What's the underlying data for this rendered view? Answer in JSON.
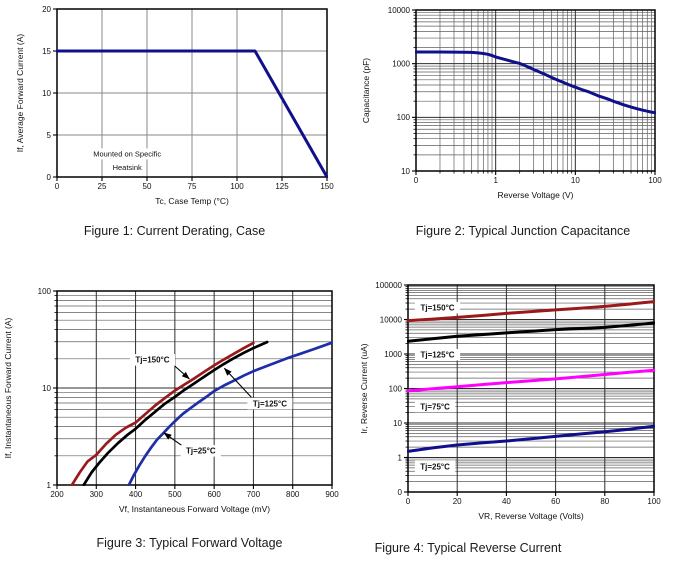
{
  "page_background": "#ffffff",
  "chart_data": [
    {
      "id": "fig1",
      "caption": "Figure 1: Current Derating, Case",
      "type": "line",
      "xscale": "linear",
      "yscale": "linear",
      "xlim": [
        0,
        150
      ],
      "ylim": [
        0,
        20
      ],
      "xlabel": "Tc, Case Temp (°C)",
      "ylabel": "If, Average Forward Current (A)",
      "xticks": [
        0,
        25,
        50,
        75,
        100,
        125,
        150
      ],
      "xtick_labels": [
        "0",
        "25",
        "50",
        "75",
        "100",
        "125",
        "150"
      ],
      "yticks": [
        0,
        5,
        10,
        15,
        20
      ],
      "ytick_labels": [
        "0",
        "5",
        "10",
        "15",
        "20"
      ],
      "grid": {
        "major": "#8a8a8a",
        "minor": "#8a8a8a"
      },
      "series": [
        {
          "name": "If derating",
          "color": "#10108c",
          "width": 3,
          "points": [
            [
              0,
              15
            ],
            [
              110,
              15
            ],
            [
              150,
              0
            ]
          ]
        }
      ],
      "annotations": [
        {
          "type": "text",
          "text": "Mounted on Specific",
          "x": 39,
          "y": 2.75
        },
        {
          "type": "text",
          "text": "Heatsink",
          "x": 39,
          "y": 1.15
        }
      ]
    },
    {
      "id": "fig2",
      "caption": "Figure 2: Typical Junction Capacitance",
      "type": "line",
      "xscale": "log",
      "yscale": "log",
      "xlim": [
        0.1,
        100
      ],
      "ylim": [
        10,
        10000
      ],
      "xlabel": "Reverse Voltage (V)",
      "ylabel": "Capacitance (pF)",
      "xticks": [
        0.1,
        1,
        10,
        100
      ],
      "xtick_labels": [
        "0",
        "1",
        "10",
        "100"
      ],
      "yticks": [
        10,
        100,
        1000,
        10000
      ],
      "ytick_labels": [
        "10",
        "100",
        "1000",
        "10000"
      ],
      "grid": {
        "major": "#2e2e2e",
        "minor": "#5f5f5f"
      },
      "series": [
        {
          "name": "Cj",
          "color": "#10108c",
          "width": 3,
          "points": [
            [
              0.1,
              1650
            ],
            [
              0.2,
              1648
            ],
            [
              0.3,
              1645
            ],
            [
              0.4,
              1635
            ],
            [
              0.5,
              1620
            ],
            [
              0.6,
              1590
            ],
            [
              0.7,
              1545
            ],
            [
              0.8,
              1495
            ],
            [
              0.9,
              1420
            ],
            [
              1,
              1330
            ],
            [
              1.2,
              1240
            ],
            [
              1.5,
              1130
            ],
            [
              2,
              1010
            ],
            [
              2.5,
              880
            ],
            [
              3,
              780
            ],
            [
              4,
              650
            ],
            [
              5,
              555
            ],
            [
              6,
              495
            ],
            [
              7,
              450
            ],
            [
              8,
              415
            ],
            [
              10,
              365
            ],
            [
              12,
              330
            ],
            [
              15,
              295
            ],
            [
              20,
              248
            ],
            [
              25,
              222
            ],
            [
              30,
              200
            ],
            [
              40,
              172
            ],
            [
              50,
              155
            ],
            [
              60,
              144
            ],
            [
              70,
              136
            ],
            [
              80,
              130
            ],
            [
              90,
              125
            ],
            [
              100,
              122
            ]
          ]
        }
      ],
      "annotations": []
    },
    {
      "id": "fig3",
      "caption": "Figure 3: Typical Forward Voltage",
      "type": "line",
      "xscale": "linear",
      "yscale": "log",
      "xlim": [
        200,
        900
      ],
      "ylim": [
        1,
        100
      ],
      "xlabel": "Vf, Instantaneous Forward  Voltage (mV)",
      "ylabel": "If, Instantaneous Forward Current (A)",
      "xticks": [
        200,
        300,
        400,
        500,
        600,
        700,
        800,
        900
      ],
      "xtick_labels": [
        "200",
        "300",
        "400",
        "500",
        "600",
        "700",
        "800",
        "900"
      ],
      "yticks": [
        1,
        10,
        100
      ],
      "ytick_labels": [
        "1",
        "10",
        "100"
      ],
      "grid": {
        "major": "#2e2e2e",
        "minor": "#5f5f5f"
      },
      "series": [
        {
          "name": "Tj=150°C",
          "color": "#9a1a1c",
          "width": 2.7,
          "points": [
            [
              238,
              1
            ],
            [
              258,
              1.35
            ],
            [
              278,
              1.75
            ],
            [
              300,
              2.05
            ],
            [
              325,
              2.65
            ],
            [
              350,
              3.3
            ],
            [
              375,
              3.9
            ],
            [
              400,
              4.4
            ],
            [
              425,
              5.4
            ],
            [
              450,
              6.6
            ],
            [
              475,
              7.9
            ],
            [
              500,
              9.4
            ],
            [
              525,
              10.9
            ],
            [
              550,
              12.6
            ],
            [
              575,
              14.7
            ],
            [
              600,
              17.1
            ],
            [
              625,
              19.7
            ],
            [
              650,
              22.5
            ],
            [
              675,
              25.7
            ],
            [
              700,
              29.2
            ]
          ]
        },
        {
          "name": "Tj=125°C",
          "color": "#000000",
          "width": 2.7,
          "points": [
            [
              268,
              1
            ],
            [
              288,
              1.35
            ],
            [
              308,
              1.7
            ],
            [
              330,
              2.15
            ],
            [
              355,
              2.7
            ],
            [
              380,
              3.3
            ],
            [
              400,
              3.8
            ],
            [
              425,
              4.7
            ],
            [
              450,
              5.7
            ],
            [
              475,
              6.9
            ],
            [
              500,
              8.1
            ],
            [
              525,
              9.6
            ],
            [
              550,
              11.2
            ],
            [
              575,
              13.1
            ],
            [
              600,
              15.3
            ],
            [
              625,
              17.7
            ],
            [
              650,
              20.3
            ],
            [
              675,
              23
            ],
            [
              700,
              25.8
            ],
            [
              720,
              28
            ],
            [
              735,
              29.8
            ]
          ]
        },
        {
          "name": "Tj=25°C",
          "color": "#1e2ea8",
          "width": 2.7,
          "points": [
            [
              383,
              1
            ],
            [
              395,
              1.25
            ],
            [
              410,
              1.6
            ],
            [
              425,
              2.0
            ],
            [
              440,
              2.45
            ],
            [
              455,
              2.95
            ],
            [
              470,
              3.4
            ],
            [
              485,
              3.95
            ],
            [
              500,
              4.55
            ],
            [
              520,
              5.4
            ],
            [
              540,
              6.2
            ],
            [
              560,
              7.1
            ],
            [
              580,
              8.1
            ],
            [
              600,
              9.3
            ],
            [
              625,
              10.6
            ],
            [
              650,
              11.9
            ],
            [
              675,
              13.4
            ],
            [
              700,
              14.9
            ],
            [
              730,
              16.6
            ],
            [
              760,
              18.5
            ],
            [
              790,
              20.6
            ],
            [
              820,
              22.6
            ],
            [
              850,
              24.9
            ],
            [
              875,
              27
            ],
            [
              900,
              29.3
            ]
          ]
        }
      ],
      "annotations": [
        {
          "type": "arrowlabel",
          "text": "Tj=150°C",
          "x": 443,
          "y": 19.5,
          "sx": 500,
          "sy": 16.8,
          "ax": 537,
          "ay": 12.4
        },
        {
          "type": "arrowlabel",
          "text": "Tj=125°C",
          "x": 742,
          "y": 6.9,
          "sx": 695,
          "sy": 8.0,
          "ax": 626,
          "ay": 16
        },
        {
          "type": "arrowlabel",
          "text": "Tj=25°C",
          "x": 566,
          "y": 2.25,
          "sx": 521,
          "sy": 2.5,
          "ax": 472,
          "ay": 3.45
        }
      ]
    },
    {
      "id": "fig4",
      "caption": "Figure 4: Typical Reverse Current",
      "type": "line",
      "xscale": "linear",
      "yscale": "log",
      "xlim": [
        0,
        100
      ],
      "ylim": [
        0.1,
        100000
      ],
      "xlabel": "VR, Reverse Voltage (Volts)",
      "ylabel": "Ir, Reverse Current (uA)",
      "xticks": [
        0,
        20,
        40,
        60,
        80,
        100
      ],
      "xtick_labels": [
        "0",
        "20",
        "40",
        "60",
        "80",
        "100"
      ],
      "yticks": [
        0.1,
        1,
        10,
        100,
        1000,
        10000,
        100000
      ],
      "ytick_labels": [
        "0",
        "1",
        "10",
        "100",
        "1000",
        "10000",
        "100000"
      ],
      "grid": {
        "major": "#2e2e2e",
        "minor": "#5f5f5f"
      },
      "series": [
        {
          "name": "Tj=150°C",
          "color": "#9a1a1c",
          "width": 3,
          "points": [
            [
              0,
              9300
            ],
            [
              10,
              10300
            ],
            [
              20,
              11500
            ],
            [
              30,
              13100
            ],
            [
              40,
              15000
            ],
            [
              50,
              16900
            ],
            [
              60,
              19000
            ],
            [
              70,
              21300
            ],
            [
              80,
              24000
            ],
            [
              90,
              28000
            ],
            [
              100,
              33000
            ]
          ]
        },
        {
          "name": "Tj=125°C",
          "color": "#000000",
          "width": 3,
          "points": [
            [
              0,
              2350
            ],
            [
              10,
              2750
            ],
            [
              20,
              3250
            ],
            [
              30,
              3650
            ],
            [
              40,
              4100
            ],
            [
              50,
              4550
            ],
            [
              60,
              5100
            ],
            [
              70,
              5500
            ],
            [
              80,
              5900
            ],
            [
              90,
              6800
            ],
            [
              100,
              7900
            ]
          ]
        },
        {
          "name": "Tj=75°C",
          "color": "#ff00ff",
          "width": 3,
          "points": [
            [
              0,
              85
            ],
            [
              10,
              99
            ],
            [
              20,
              113
            ],
            [
              30,
              130
            ],
            [
              40,
              148
            ],
            [
              50,
              168
            ],
            [
              60,
              190
            ],
            [
              70,
              220
            ],
            [
              80,
              255
            ],
            [
              90,
              295
            ],
            [
              100,
              340
            ]
          ]
        },
        {
          "name": "Tj=25°C",
          "color": "#10108c",
          "width": 3,
          "points": [
            [
              0,
              1.5
            ],
            [
              10,
              1.9
            ],
            [
              20,
              2.3
            ],
            [
              30,
              2.65
            ],
            [
              40,
              3.0
            ],
            [
              50,
              3.5
            ],
            [
              60,
              4.1
            ],
            [
              70,
              4.8
            ],
            [
              80,
              5.6
            ],
            [
              90,
              6.6
            ],
            [
              100,
              8
            ]
          ]
        }
      ],
      "annotations": [
        {
          "type": "boxlabel",
          "text": "Tj=150°C",
          "x": 12,
          "y": 22000
        },
        {
          "type": "boxlabel",
          "text": "Tj=125°C",
          "x": 12,
          "y": 950
        },
        {
          "type": "boxlabel",
          "text": "Tj=75°C",
          "x": 11,
          "y": 30
        },
        {
          "type": "boxlabel",
          "text": "Tj=25°C",
          "x": 11,
          "y": 0.55
        }
      ]
    }
  ]
}
